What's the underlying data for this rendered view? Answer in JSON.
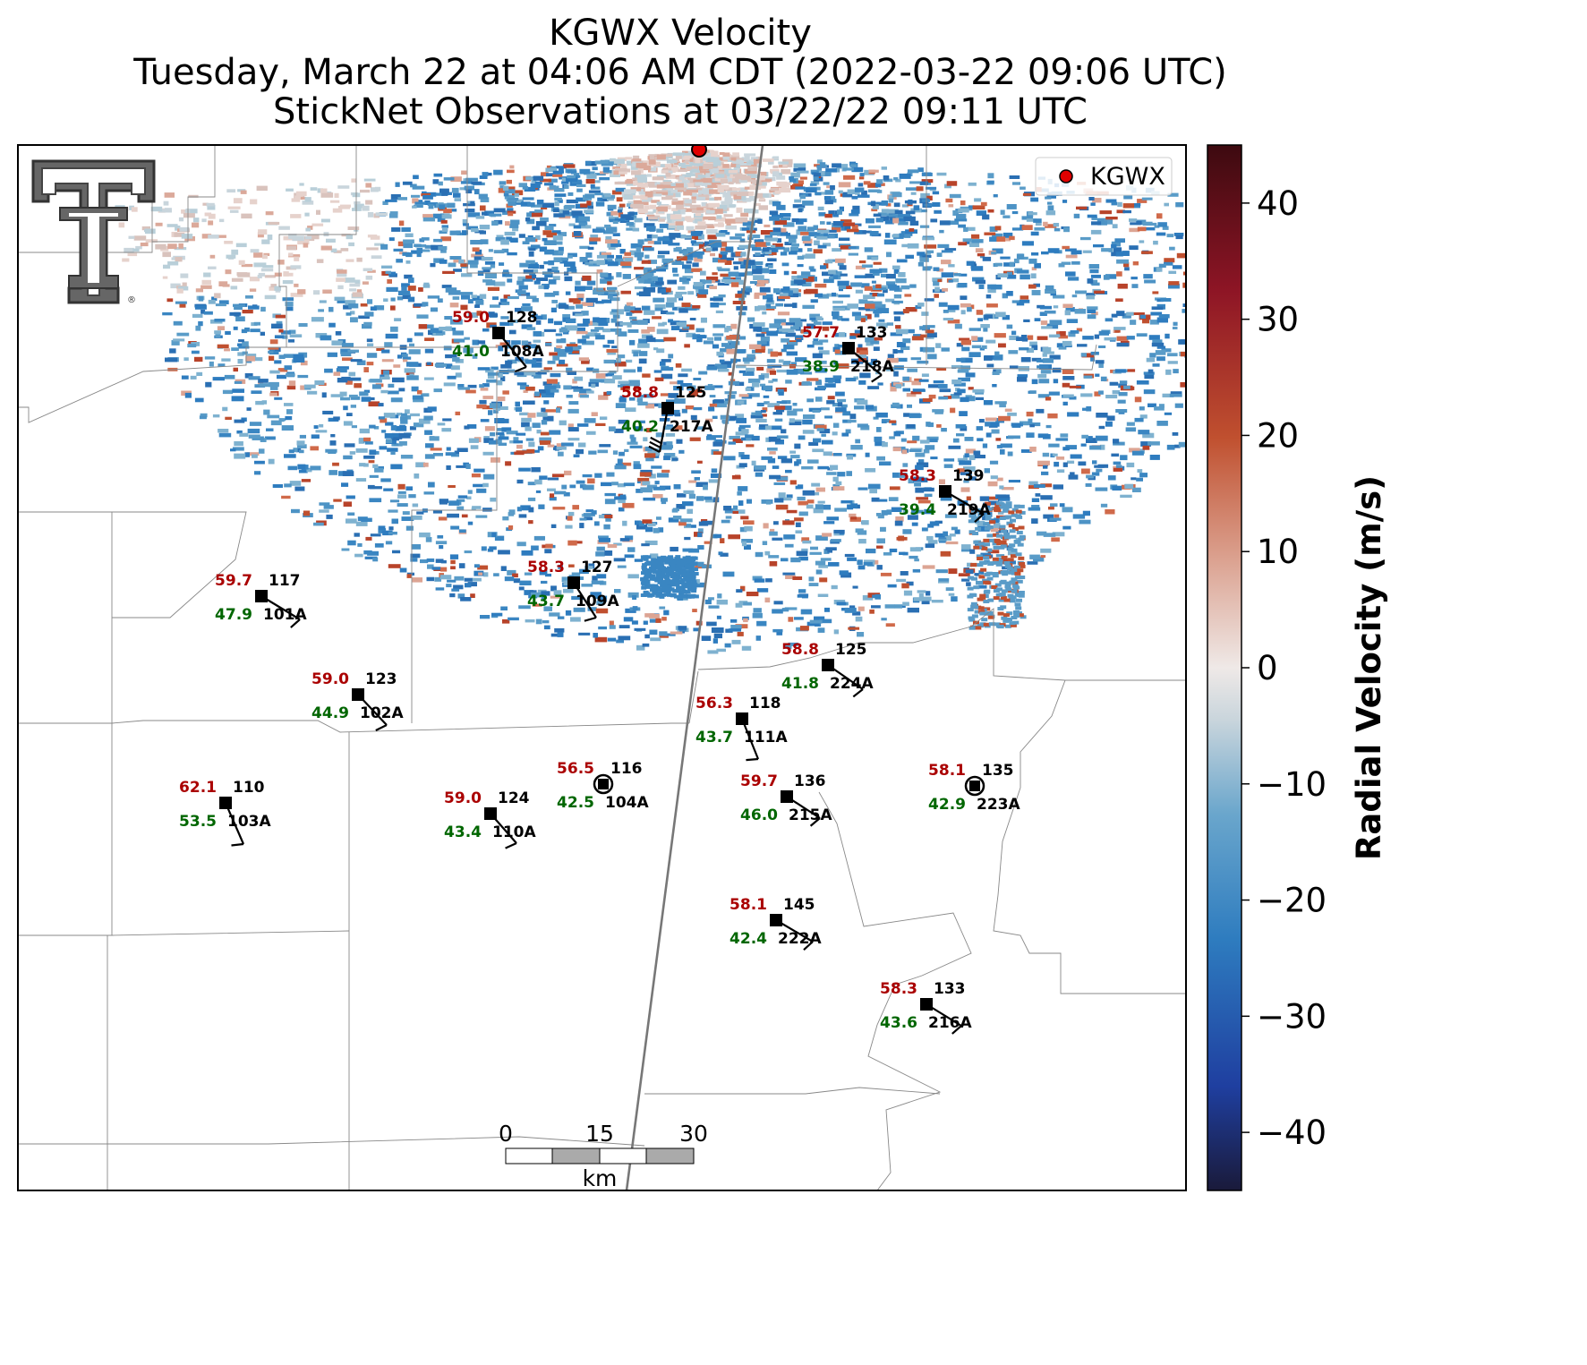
{
  "title": {
    "line1": "KGWX Velocity",
    "line2": "Tuesday, March 22 at 04:06 AM CDT (2022-03-22 09:06 UTC)",
    "line3": "StickNet Observations at 03/22/22 09:11 UTC"
  },
  "legend": {
    "label": "KGWX",
    "marker_color": "#e00000"
  },
  "colorbar": {
    "label": "Radial Velocity (m/s)",
    "ticks": [
      "40",
      "30",
      "20",
      "10",
      "0",
      "−10",
      "−20",
      "−30",
      "−40"
    ],
    "tick_values": [
      40,
      30,
      20,
      10,
      0,
      -10,
      -20,
      -30,
      -40
    ],
    "range": [
      -45,
      45
    ],
    "colors": [
      "#1a1a3a",
      "#1f3fa0",
      "#2e7cbf",
      "#6aa6cc",
      "#c9d5dc",
      "#efe9e7",
      "#dca493",
      "#c0502f",
      "#8e1525",
      "#3d0a10"
    ]
  },
  "scale_bar": {
    "ticks": [
      "0",
      "15",
      "30"
    ],
    "unit": "km"
  },
  "stations": [
    {
      "id": "108A",
      "temp": "59.0",
      "dew": "41.0",
      "dir": "128",
      "mx": 557,
      "my": 372,
      "bx": 588,
      "by": 410
    },
    {
      "id": "218A",
      "temp": "57.7",
      "dew": "38.9",
      "dir": "133",
      "mx": 948,
      "my": 389,
      "bx": 985,
      "by": 419
    },
    {
      "id": "217A",
      "temp": "58.8",
      "dew": "40.2",
      "dir": "125",
      "mx": 746,
      "my": 456,
      "bx": 737,
      "by": 505
    },
    {
      "id": "219A",
      "temp": "58.3",
      "dew": "39.4",
      "dir": "139",
      "mx": 1056,
      "my": 549,
      "bx": 1099,
      "by": 574
    },
    {
      "id": "101A",
      "temp": "59.7",
      "dew": "47.9",
      "dir": "117",
      "mx": 292,
      "my": 666,
      "bx": 335,
      "by": 692
    },
    {
      "id": "109A",
      "temp": "58.3",
      "dew": "43.7",
      "dir": "127",
      "mx": 641,
      "my": 651,
      "bx": 666,
      "by": 690
    },
    {
      "id": "224A",
      "temp": "58.8",
      "dew": "41.8",
      "dir": "125",
      "mx": 925,
      "my": 743,
      "bx": 964,
      "by": 770
    },
    {
      "id": "102A",
      "temp": "59.0",
      "dew": "44.9",
      "dir": "123",
      "mx": 400,
      "my": 776,
      "bx": 432,
      "by": 810
    },
    {
      "id": "111A",
      "temp": "56.3",
      "dew": "43.7",
      "dir": "118",
      "mx": 829,
      "my": 803,
      "bx": 847,
      "by": 848
    },
    {
      "id": "104A",
      "temp": "56.5",
      "dew": "42.5",
      "dir": "116",
      "mx": 674,
      "my": 876,
      "bx": 674,
      "by": 876
    },
    {
      "id": "223A",
      "temp": "58.1",
      "dew": "42.9",
      "dir": "135",
      "mx": 1089,
      "my": 878,
      "bx": 1089,
      "by": 878
    },
    {
      "id": "215A",
      "temp": "59.7",
      "dew": "46.0",
      "dir": "136",
      "mx": 879,
      "my": 890,
      "bx": 916,
      "by": 914
    },
    {
      "id": "103A",
      "temp": "62.1",
      "dew": "53.5",
      "dir": "110",
      "mx": 252,
      "my": 897,
      "bx": 272,
      "by": 943
    },
    {
      "id": "110A",
      "temp": "59.0",
      "dew": "43.4",
      "dir": "124",
      "mx": 548,
      "my": 909,
      "bx": 577,
      "by": 942
    },
    {
      "id": "222A",
      "temp": "58.1",
      "dew": "42.4",
      "dir": "145",
      "mx": 867,
      "my": 1028,
      "bx": 908,
      "by": 1052
    },
    {
      "id": "216A",
      "temp": "58.3",
      "dew": "43.6",
      "dir": "133",
      "mx": 1035,
      "my": 1122,
      "bx": 1074,
      "by": 1146
    }
  ]
}
